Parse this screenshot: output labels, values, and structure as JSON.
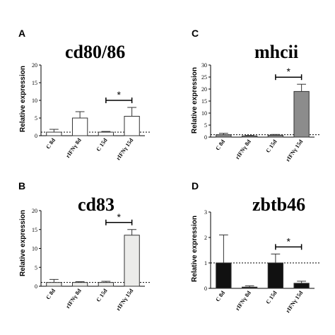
{
  "chart_data": [
    {
      "panel": "A",
      "title": "cd80/86",
      "type": "bar",
      "ylabel": "Relative expression",
      "ylim": [
        0,
        20
      ],
      "yticks": [
        0,
        5,
        10,
        15,
        20
      ],
      "categories": [
        "C 8d",
        "rIFNγ 8d",
        "C 15d",
        "rIFNγ 15d"
      ],
      "values": [
        1.0,
        5.0,
        1.0,
        5.5
      ],
      "errors": [
        0.8,
        1.8,
        0.2,
        2.5
      ],
      "bar_colors": [
        "#ffffff",
        "#ffffff",
        "#ffffff",
        "#ffffff"
      ],
      "reference_line": 1,
      "significance": [
        {
          "from": 2,
          "to": 3,
          "label": "*"
        }
      ]
    },
    {
      "panel": "C",
      "title": "mhcii",
      "type": "bar",
      "ylabel": "Relative expression",
      "ylim": [
        0,
        30
      ],
      "yticks": [
        0,
        5,
        10,
        15,
        20,
        25,
        30
      ],
      "categories": [
        "C 8d",
        "rIFNγ 8d",
        "C 15d",
        "rIFNγ 15d"
      ],
      "values": [
        1.0,
        0.5,
        0.8,
        19.0
      ],
      "errors": [
        0.6,
        0.2,
        0.3,
        3.0
      ],
      "bar_colors": [
        "#8c8c8c",
        "#8c8c8c",
        "#8c8c8c",
        "#8c8c8c"
      ],
      "reference_line": 1,
      "significance": [
        {
          "from": 2,
          "to": 3,
          "label": "*"
        }
      ]
    },
    {
      "panel": "B",
      "title": "cd83",
      "type": "bar",
      "ylabel": "Relative expression",
      "ylim": [
        0,
        20
      ],
      "yticks": [
        0,
        5,
        10,
        15,
        20
      ],
      "categories": [
        "C 8d",
        "rIFNγ 8d",
        "C 15d",
        "rIFNγ 15d"
      ],
      "values": [
        1.0,
        1.0,
        1.0,
        13.5
      ],
      "errors": [
        0.8,
        0.2,
        0.3,
        1.5
      ],
      "bar_colors": [
        "#ececea",
        "#ececea",
        "#ececea",
        "#ececea"
      ],
      "reference_line": 1,
      "significance": [
        {
          "from": 2,
          "to": 3,
          "label": "*"
        }
      ]
    },
    {
      "panel": "D",
      "title": "zbtb46",
      "type": "bar",
      "ylabel": "Relative expression",
      "ylim": [
        0,
        3
      ],
      "yticks": [
        0,
        1,
        2,
        3
      ],
      "categories": [
        "C 8d",
        "rIFNγ 8d",
        "C 15d",
        "rIFNγ 15d"
      ],
      "values": [
        1.0,
        0.05,
        1.0,
        0.2
      ],
      "errors": [
        1.1,
        0.05,
        0.35,
        0.08
      ],
      "bar_colors": [
        "#111111",
        "#111111",
        "#111111",
        "#111111"
      ],
      "reference_line": 1,
      "significance": [
        {
          "from": 2,
          "to": 3,
          "label": "*"
        }
      ]
    }
  ]
}
